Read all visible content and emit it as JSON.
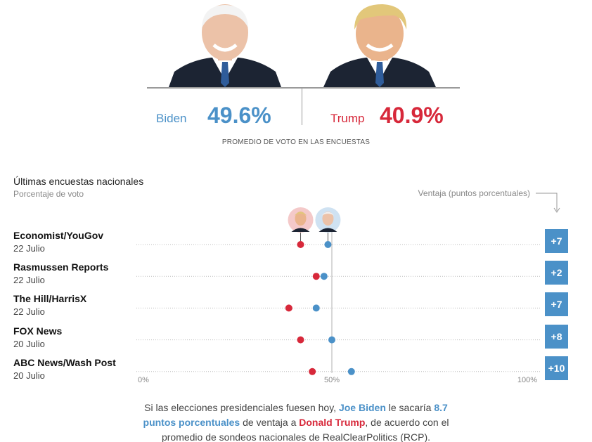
{
  "header": {
    "candidates": [
      {
        "name": "Biden",
        "pct": "49.6%",
        "color": "#4b91c8"
      },
      {
        "name": "Trump",
        "pct": "40.9%",
        "color": "#d7283a"
      }
    ],
    "caption": "PROMEDIO DE VOTO EN LAS ENCUESTAS"
  },
  "chart": {
    "title": "Últimas encuestas nacionales",
    "subtitle": "Porcentaje de voto",
    "advantage_label": "Ventaja (puntos porcentuales)"
  },
  "chart_data": {
    "type": "scatter",
    "title": "Últimas encuestas nacionales",
    "subtitle": "Porcentaje de voto",
    "xlim": [
      0,
      100
    ],
    "x_ticks": [
      "0%",
      "50%",
      "100%"
    ],
    "reference_line": 50,
    "series": [
      {
        "name": "Biden",
        "color": "#4b91c8"
      },
      {
        "name": "Trump",
        "color": "#d7283a"
      }
    ],
    "polls": [
      {
        "pollster": "Economist/YouGov",
        "date": "22 Julio",
        "biden": 49,
        "trump": 42,
        "advantage": "+7"
      },
      {
        "pollster": "Rasmussen Reports",
        "date": "22 Julio",
        "biden": 48,
        "trump": 46,
        "advantage": "+2"
      },
      {
        "pollster": "The Hill/HarrisX",
        "date": "22 Julio",
        "biden": 46,
        "trump": 39,
        "advantage": "+7"
      },
      {
        "pollster": "FOX News",
        "date": "20 Julio",
        "biden": 50,
        "trump": 42,
        "advantage": "+8"
      },
      {
        "pollster": "ABC News/Wash Post",
        "date": "20 Julio",
        "biden": 55,
        "trump": 45,
        "advantage": "+10"
      }
    ]
  },
  "footnote": {
    "p1": "Si las elecciones presidenciales fuesen hoy, ",
    "biden": "Joe Biden",
    "p2": " le sacaría ",
    "points": "8.7 puntos porcentuales",
    "p3": " de ventaja a ",
    "trump": "Donald Trump",
    "p4": ", de acuerdo con el promedio de sondeos nacionales de RealClearPolitics (RCP)."
  }
}
